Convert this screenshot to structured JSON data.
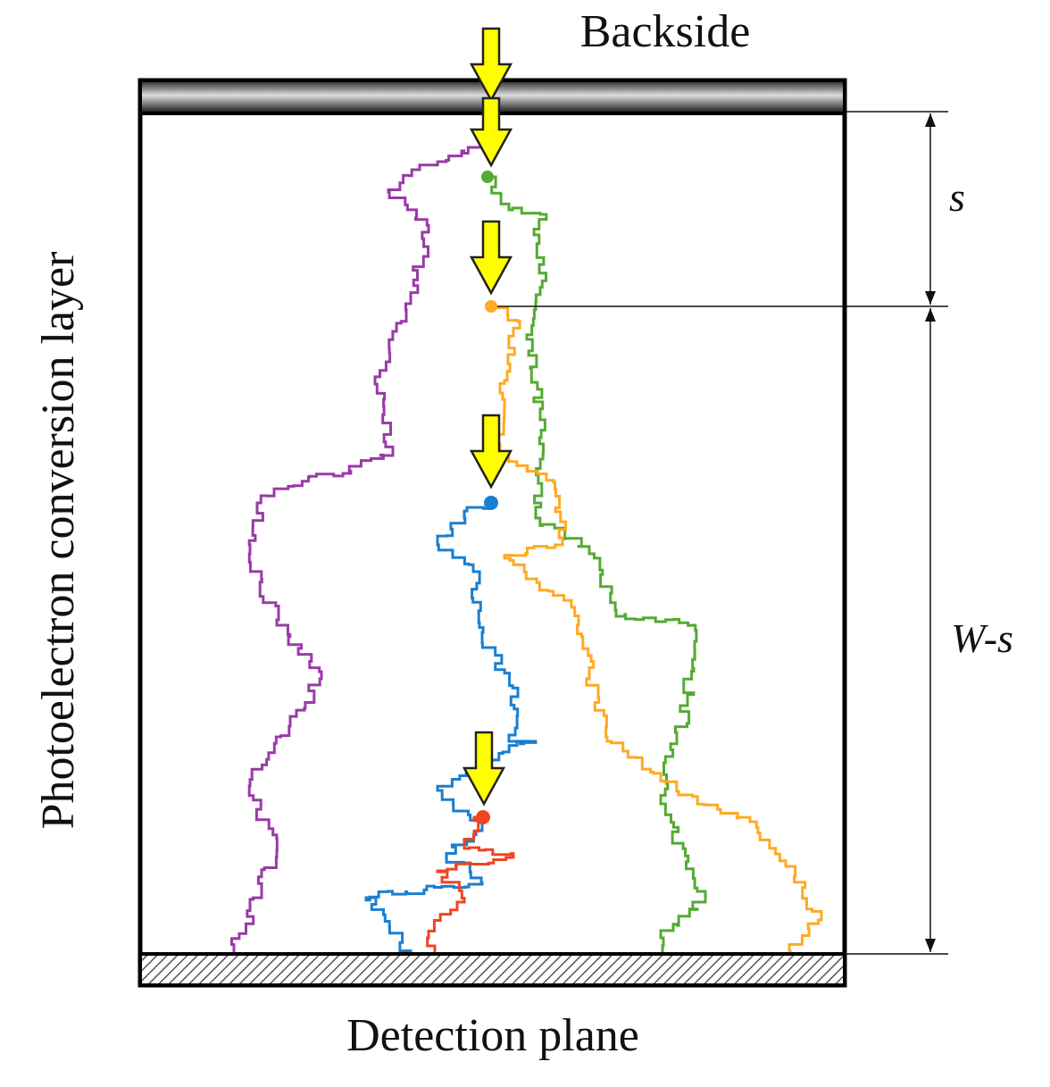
{
  "labels": {
    "top": "Backside",
    "bottom": "Detection plane",
    "side": "Photoelectron conversion layer",
    "s": "s",
    "w_minus_s": "W-s"
  }
}
